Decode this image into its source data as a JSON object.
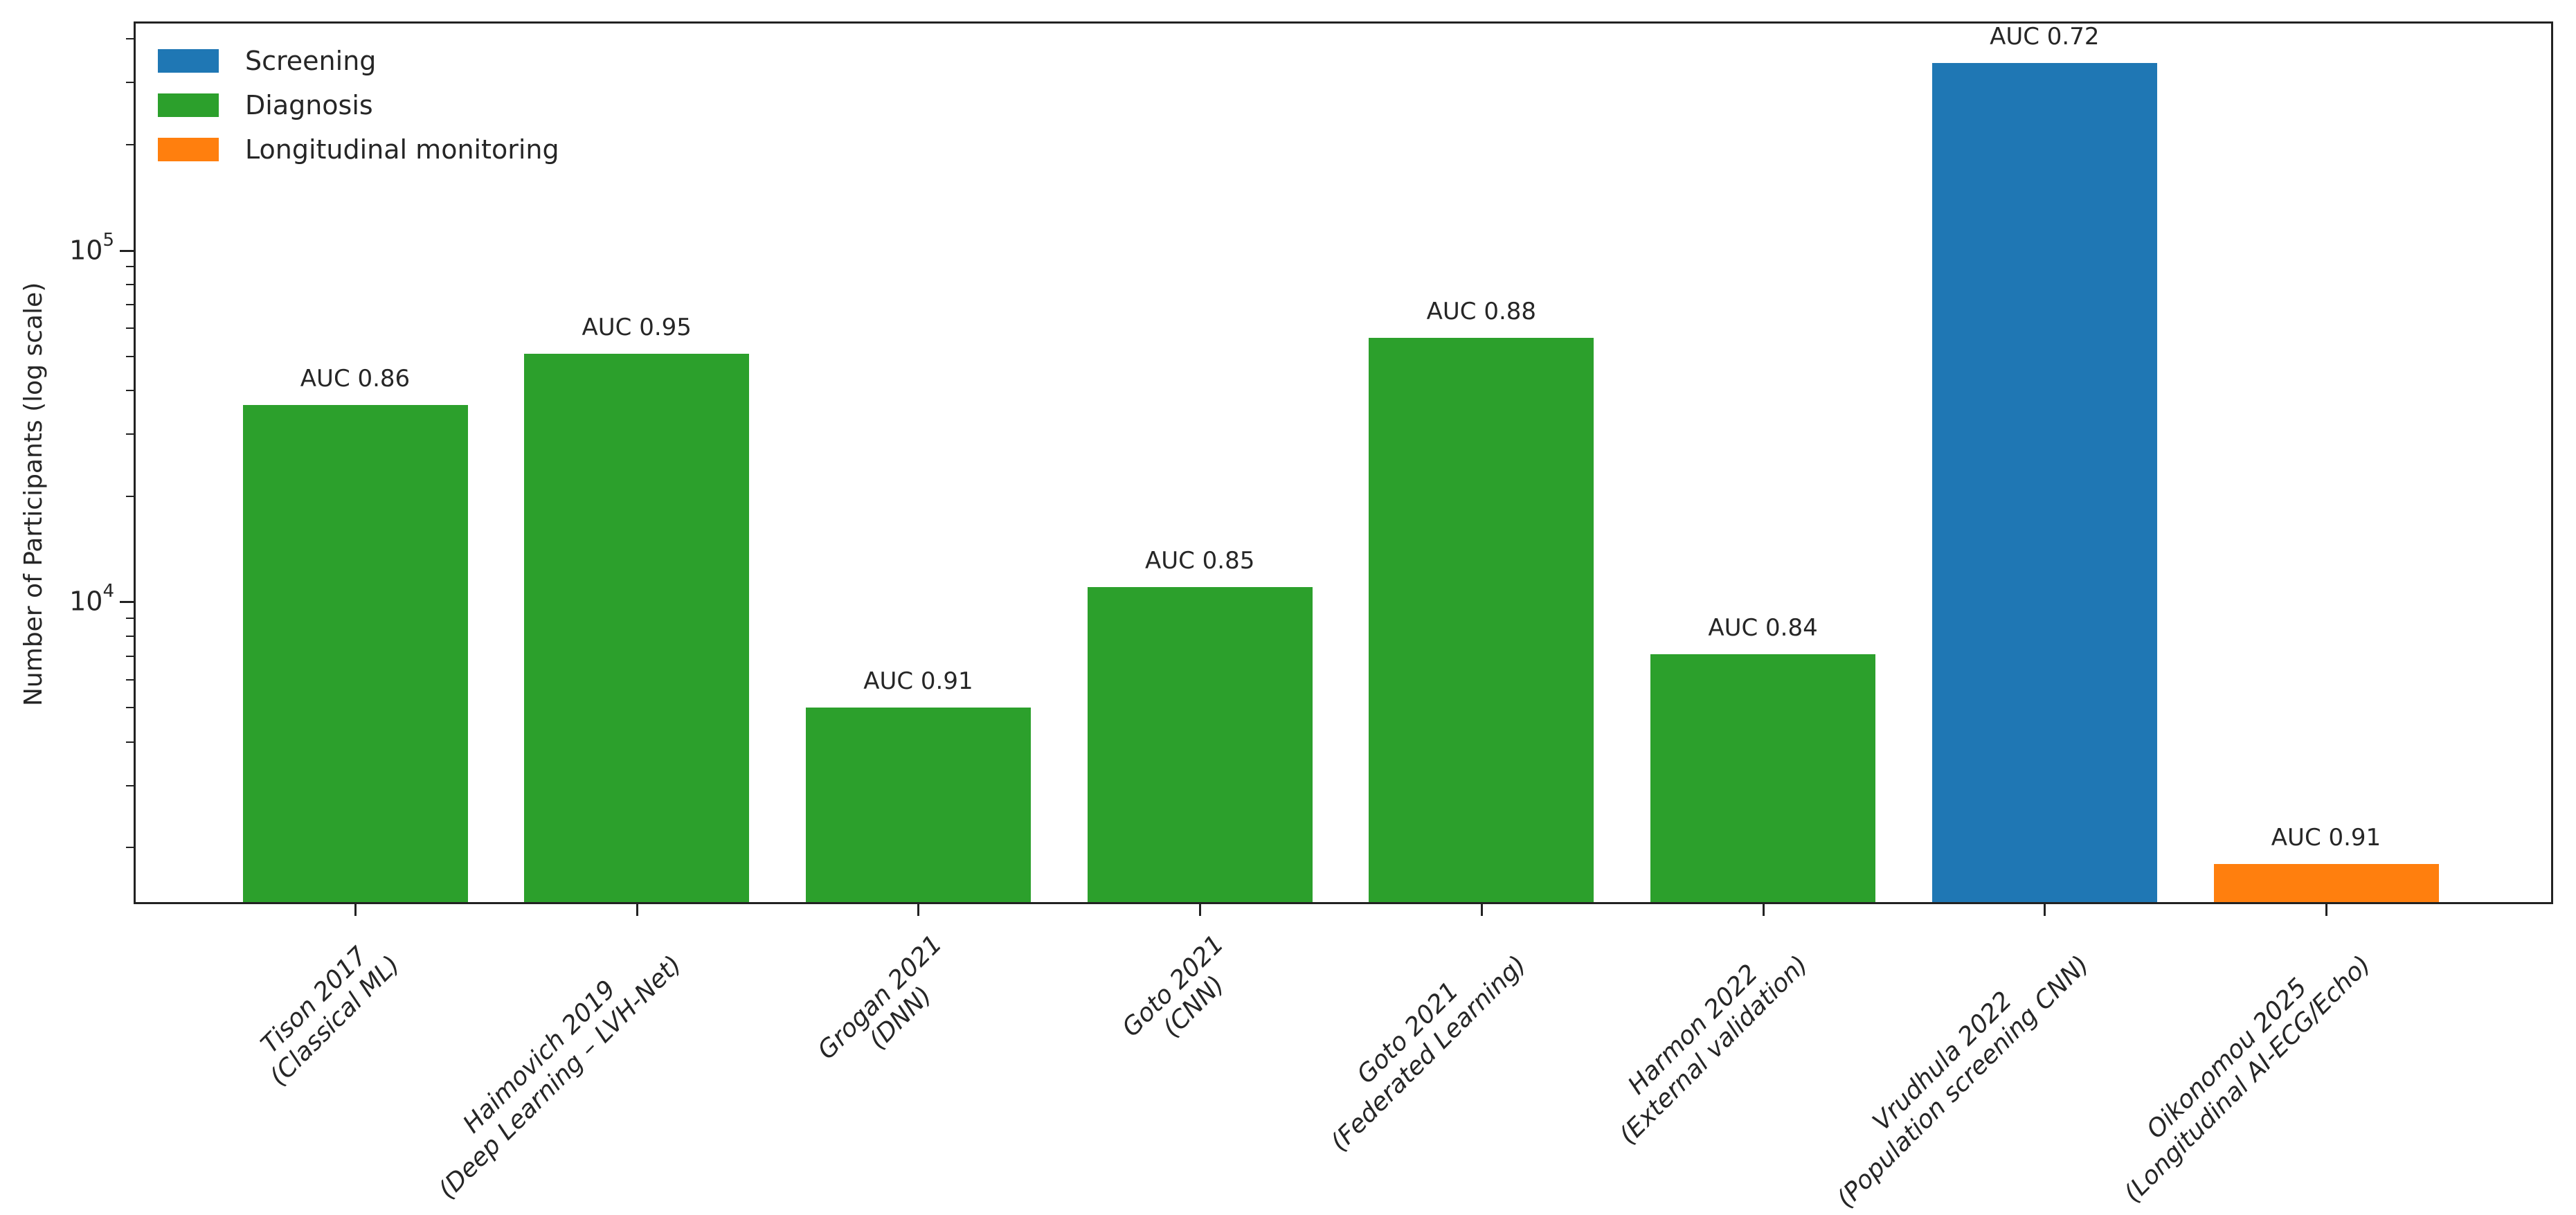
{
  "chart_data": {
    "type": "bar",
    "title": "",
    "xlabel": "",
    "ylabel": "Number of Participants (log scale)",
    "yscale": "log",
    "ylim": [
      1400,
      444000
    ],
    "grid": false,
    "legend_position": "upper left",
    "legend": [
      {
        "label": "Screening",
        "color": "#1f77b4"
      },
      {
        "label": "Diagnosis",
        "color": "#2ca02c"
      },
      {
        "label": "Longitudinal monitoring",
        "color": "#ff7f0e"
      }
    ],
    "y_ticks": [
      {
        "value": 10000,
        "label_base": "10",
        "label_exp": "4"
      },
      {
        "value": 100000,
        "label_base": "10",
        "label_exp": "5"
      }
    ],
    "categories": [
      "Tison 2017\n(Classical ML)",
      "Haimovich 2019\n(Deep Learning – LVH-Net)",
      "Grogan 2021\n(DNN)",
      "Goto 2021\n(CNN)",
      "Goto 2021\n(Federated Learning)",
      "Harmon 2022\n(External validation)",
      "Vrudhula 2022\n(Population screening CNN)",
      "Oikonomou 2025\n(Longitudinal AI-ECG/Echo)"
    ],
    "bars": [
      {
        "line1": "Tison 2017",
        "line2": "(Classical ML)",
        "value": 36400,
        "auc_label": "AUC 0.86",
        "category": "Diagnosis",
        "color": "#2ca02c"
      },
      {
        "line1": "Haimovich 2019",
        "line2": "(Deep Learning – LVH-Net)",
        "value": 50800,
        "auc_label": "AUC 0.95",
        "category": "Diagnosis",
        "color": "#2ca02c"
      },
      {
        "line1": "Grogan 2021",
        "line2": "(DNN)",
        "value": 5000,
        "auc_label": "AUC 0.91",
        "category": "Diagnosis",
        "color": "#2ca02c"
      },
      {
        "line1": "Goto 2021",
        "line2": "(CNN)",
        "value": 11000,
        "auc_label": "AUC 0.85",
        "category": "Diagnosis",
        "color": "#2ca02c"
      },
      {
        "line1": "Goto 2021",
        "line2": "(Federated Learning)",
        "value": 56500,
        "auc_label": "AUC 0.88",
        "category": "Diagnosis",
        "color": "#2ca02c"
      },
      {
        "line1": "Harmon 2022",
        "line2": "(External validation)",
        "value": 7100,
        "auc_label": "AUC 0.84",
        "category": "Diagnosis",
        "color": "#2ca02c"
      },
      {
        "line1": "Vrudhula 2022",
        "line2": "(Population screening CNN)",
        "value": 341000,
        "auc_label": "AUC 0.72",
        "category": "Screening",
        "color": "#1f77b4"
      },
      {
        "line1": "Oikonomou 2025",
        "line2": "(Longitudinal AI-ECG/Echo)",
        "value": 1800,
        "auc_label": "AUC 0.91",
        "category": "Longitudinal monitoring",
        "color": "#ff7f0e"
      }
    ],
    "values": [
      36400,
      50800,
      5000,
      11000,
      56500,
      7100,
      341000,
      1800
    ]
  }
}
